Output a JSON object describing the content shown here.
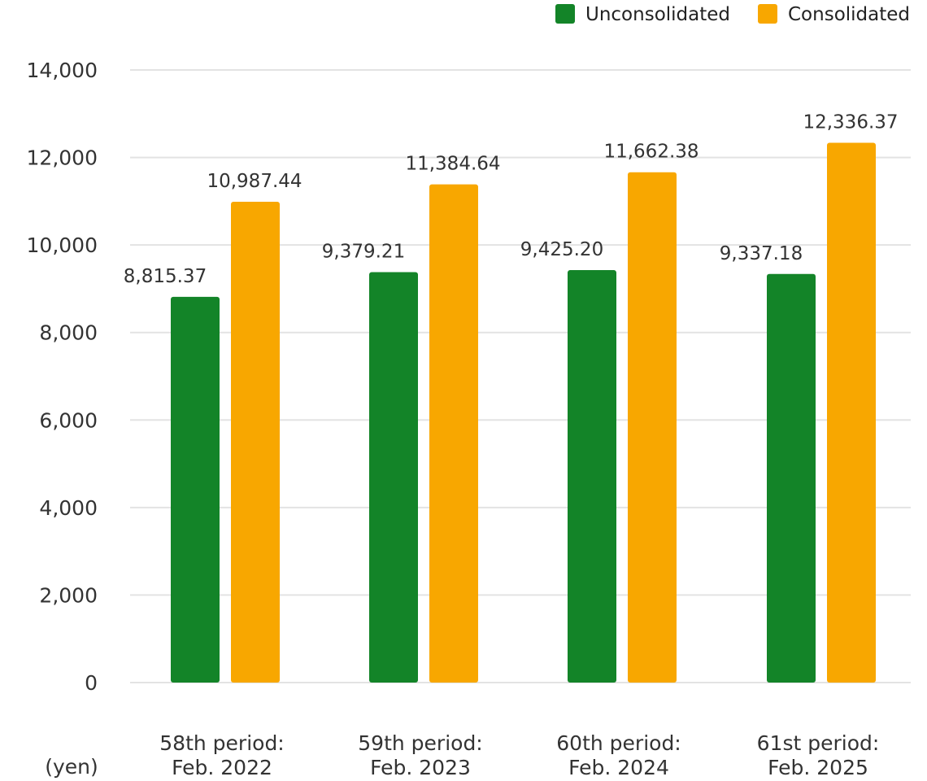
{
  "chart_data": {
    "type": "bar",
    "categories": [
      [
        "58th period:",
        "Feb. 2022"
      ],
      [
        "59th period:",
        "Feb. 2023"
      ],
      [
        "60th period:",
        "Feb. 2024"
      ],
      [
        "61st period:",
        "Feb. 2025"
      ]
    ],
    "series": [
      {
        "name": "Unconsolidated",
        "color": "#138428",
        "values": [
          8815.37,
          9379.21,
          9425.2,
          9337.18
        ],
        "labels": [
          "8,815.37",
          "9,379.21",
          "9,425.20",
          "9,337.18"
        ]
      },
      {
        "name": "Consolidated",
        "color": "#F8A700",
        "values": [
          10987.44,
          11384.64,
          11662.38,
          12336.37
        ],
        "labels": [
          "10,987.44",
          "11,384.64",
          "11,662.38",
          "12,336.37"
        ]
      }
    ],
    "ylim": [
      0,
      14000
    ],
    "yticks": [
      0,
      2000,
      4000,
      6000,
      8000,
      10000,
      12000,
      14000
    ],
    "ytick_labels": [
      "0",
      "2,000",
      "4,000",
      "6,000",
      "8,000",
      "10,000",
      "12,000",
      "14,000"
    ],
    "unit_label": "(yen)",
    "grid": true,
    "legend_position": "top-right"
  }
}
